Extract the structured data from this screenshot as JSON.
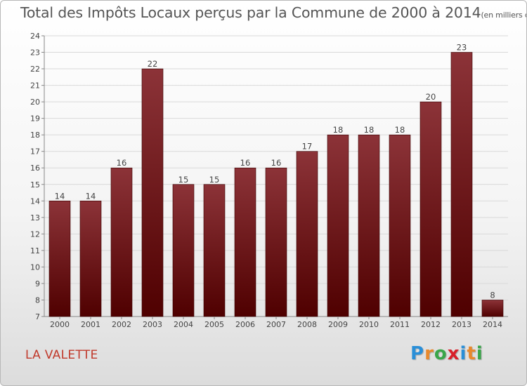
{
  "header": {
    "title": "Total des Impôts Locaux perçus par la Commune de 2000 à 2014",
    "subtitle": "(en milliers d'€)"
  },
  "footer": {
    "commune": "LA VALETTE",
    "logo": [
      "P",
      "r",
      "o",
      "x",
      "i",
      "t",
      "i"
    ],
    "logo_colors": [
      "#2a8fd8",
      "#e8892c",
      "#3aa64a",
      "#d8202a",
      "#2a8fd8",
      "#e8892c",
      "#3aa64a"
    ]
  },
  "colors": {
    "bar_top": "#8c3338",
    "bar_bottom": "#4f0000",
    "grid": "#d9d9d9",
    "axis_text": "#444444"
  },
  "chart_data": {
    "type": "bar",
    "title": "Total des Impôts Locaux perçus par la Commune de 2000 à 2014",
    "unit": "(en milliers d'€)",
    "categories": [
      "2000",
      "2001",
      "2002",
      "2003",
      "2004",
      "2005",
      "2006",
      "2007",
      "2008",
      "2009",
      "2010",
      "2011",
      "2012",
      "2013",
      "2014"
    ],
    "values": [
      14,
      14,
      16,
      22,
      15,
      15,
      16,
      16,
      17,
      18,
      18,
      18,
      20,
      23,
      8
    ],
    "ylim": [
      7,
      24
    ],
    "yticks": [
      7,
      8,
      9,
      10,
      11,
      12,
      13,
      14,
      15,
      16,
      17,
      18,
      19,
      20,
      21,
      22,
      23,
      24
    ],
    "grid": true
  }
}
